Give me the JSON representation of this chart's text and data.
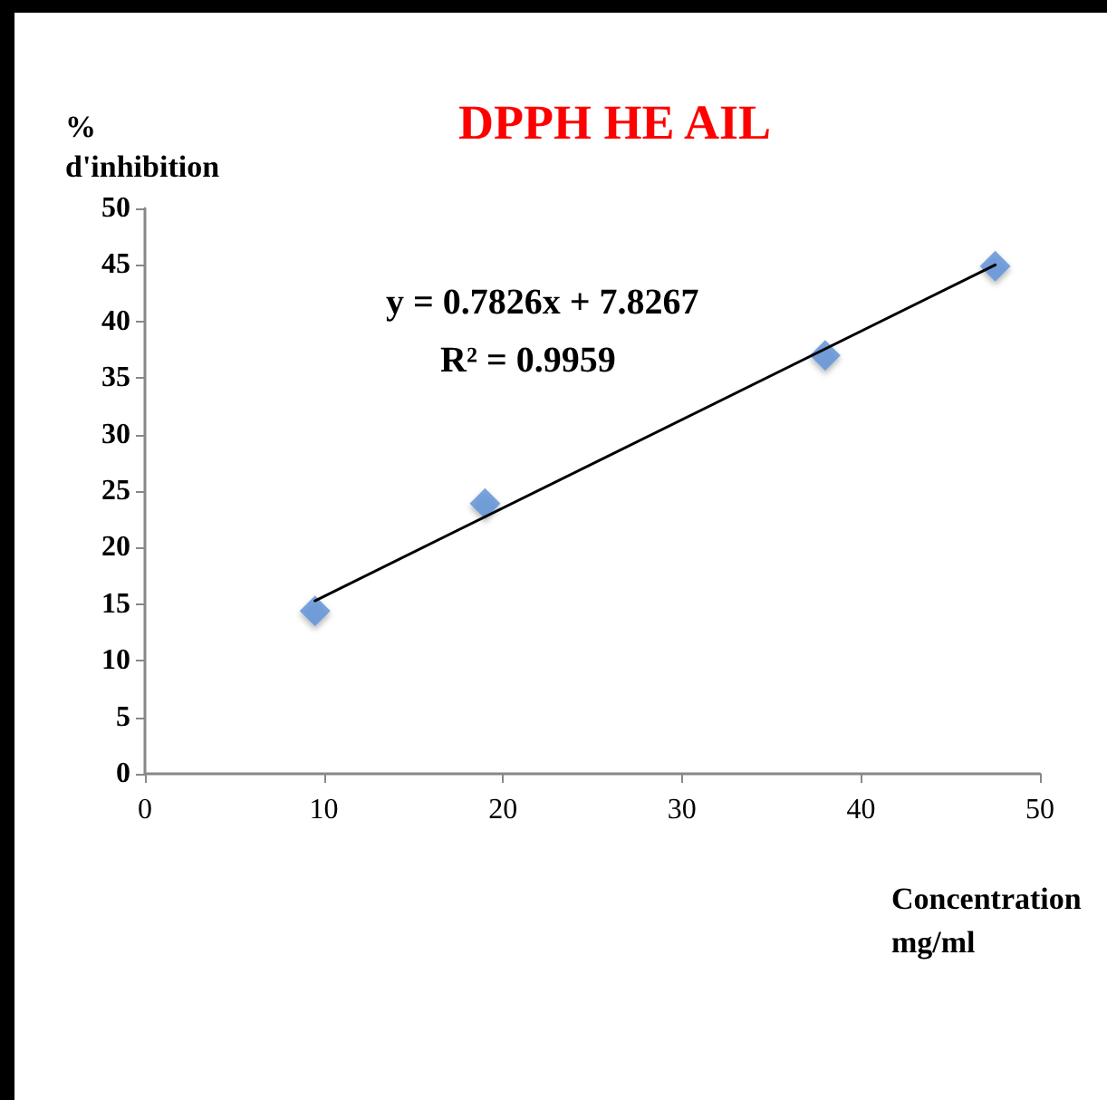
{
  "chart_data": {
    "type": "scatter",
    "title": "DPPH HE AIL",
    "xlabel": "Concentration\nmg/ml",
    "ylabel": "%\nd'inhibition",
    "annotations": [
      "y = 0.7826x + 7.8267",
      "R² = 0.9959"
    ],
    "series": [
      {
        "marker": "diamond",
        "color": "#5b8fd6",
        "x": [
          9.5,
          19,
          38,
          47.5
        ],
        "values": [
          14.4,
          23.9,
          37.0,
          44.9
        ]
      },
      {
        "type": "line",
        "marker": "none",
        "line_style": "solid",
        "color": "#000000",
        "x": [
          9.5,
          47.5
        ],
        "values": [
          15.3,
          45.0
        ]
      }
    ],
    "xlim": [
      0,
      50
    ],
    "xticks": [
      0,
      10,
      20,
      30,
      40,
      50
    ],
    "ylim": [
      0,
      50
    ],
    "yticks": [
      0,
      5,
      10,
      15,
      20,
      25,
      30,
      35,
      40,
      45,
      50
    ],
    "grid": false
  }
}
